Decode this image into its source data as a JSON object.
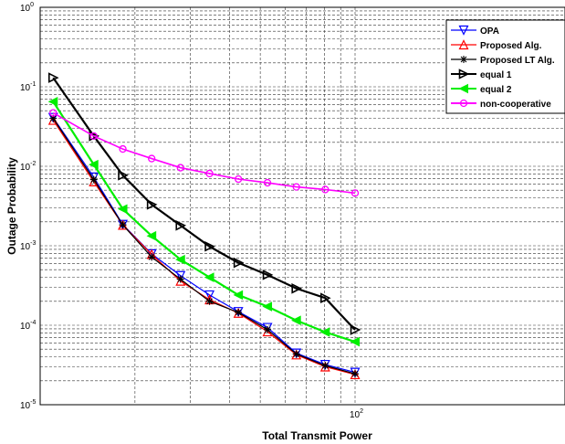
{
  "chart_data": {
    "type": "line",
    "title": "",
    "xlabel": "Total Transmit Power",
    "ylabel": "Outage Probability",
    "x_scale": "log",
    "y_scale": "log",
    "xlim": [
      10,
      100
    ],
    "ylim": [
      1e-05,
      1
    ],
    "grid": true,
    "legend_position": "top-right",
    "x_tick_labels": [
      {
        "value": 100,
        "base": "10",
        "exp": "2"
      }
    ],
    "y_tick_labels": [
      {
        "value": 1,
        "base": "10",
        "exp": "0"
      },
      {
        "value": 0.1,
        "base": "10",
        "exp": "-1"
      },
      {
        "value": 0.01,
        "base": "10",
        "exp": "-2"
      },
      {
        "value": 0.001,
        "base": "10",
        "exp": "-3"
      },
      {
        "value": 0.0001,
        "base": "10",
        "exp": "-4"
      },
      {
        "value": 1e-05,
        "base": "10",
        "exp": "-5"
      }
    ],
    "series": [
      {
        "name": "OPA",
        "color": "#0000ff",
        "marker": "triangle-down",
        "x": [
          11,
          14.8,
          18.3,
          22.6,
          27.9,
          34.5,
          42.6,
          52.7,
          65.1,
          80.4,
          100
        ],
        "y": [
          0.041,
          0.0073,
          0.00185,
          0.00079,
          0.00042,
          0.00024,
          0.000148,
          9.35e-05,
          4.45e-05,
          3.2e-05,
          2.55e-05
        ]
      },
      {
        "name": "Proposed Alg.",
        "color": "#ff0000",
        "marker": "triangle-up",
        "x": [
          11,
          14.8,
          18.3,
          22.6,
          27.9,
          34.5,
          42.6,
          52.7,
          65.1,
          80.4,
          100
        ],
        "y": [
          0.038,
          0.0064,
          0.00182,
          0.00078,
          0.00036,
          0.00021,
          0.000142,
          8.3e-05,
          4.25e-05,
          3e-05,
          2.4e-05
        ]
      },
      {
        "name": "Proposed  LT Alg.",
        "color": "#000000",
        "marker": "star",
        "x": [
          11,
          14.8,
          18.3,
          22.6,
          27.9,
          34.5,
          42.6,
          52.7,
          65.1,
          80.4,
          100
        ],
        "y": [
          0.04,
          0.0068,
          0.00183,
          0.00072,
          0.00038,
          0.0002,
          0.000145,
          8.8e-05,
          4.35e-05,
          3.1e-05,
          2.45e-05
        ]
      },
      {
        "name": "equal 1",
        "color": "#000000",
        "marker": "triangle-right",
        "x": [
          11,
          14.8,
          18.3,
          22.6,
          27.9,
          34.5,
          42.6,
          52.7,
          65.1,
          80.4,
          100
        ],
        "y": [
          0.13,
          0.024,
          0.0077,
          0.0033,
          0.0018,
          0.00098,
          0.00061,
          0.00043,
          0.00029,
          0.00022,
          8.75e-05
        ]
      },
      {
        "name": "equal 2",
        "color": "#00ee00",
        "marker": "triangle-left",
        "x": [
          11,
          14.8,
          18.3,
          22.6,
          27.9,
          34.5,
          42.6,
          52.7,
          65.1,
          80.4,
          100
        ],
        "y": [
          0.065,
          0.0105,
          0.0029,
          0.00133,
          0.00067,
          0.0004,
          0.00024,
          0.000172,
          0.000115,
          8.2e-05,
          6.2e-05
        ]
      },
      {
        "name": "non-cooperative",
        "color": "#ff00ff",
        "marker": "circle",
        "x": [
          11,
          14.8,
          18.3,
          22.6,
          27.9,
          34.5,
          42.6,
          52.7,
          65.1,
          80.4,
          100
        ],
        "y": [
          0.047,
          0.024,
          0.0165,
          0.0125,
          0.0096,
          0.0081,
          0.0069,
          0.0062,
          0.0055,
          0.0051,
          0.0046
        ]
      }
    ]
  }
}
